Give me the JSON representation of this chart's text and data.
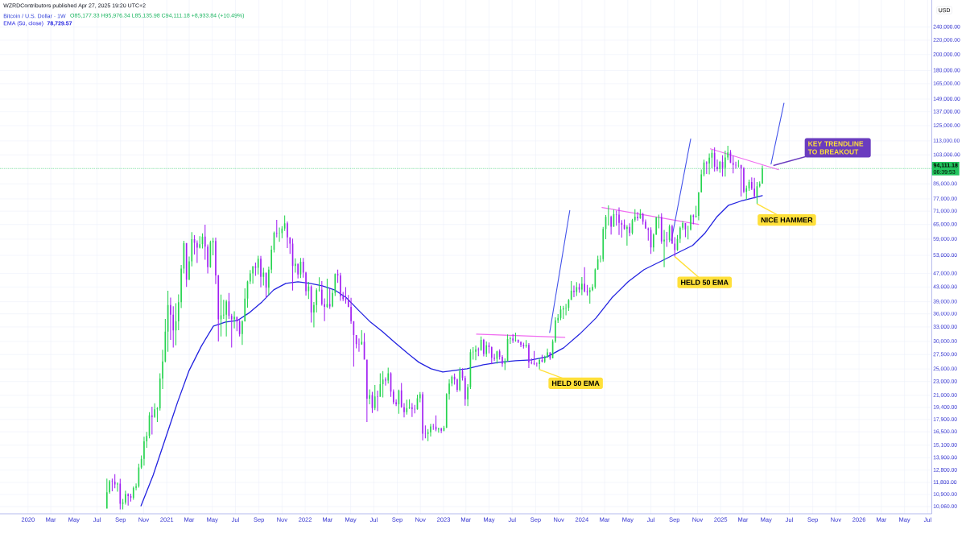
{
  "chart_data": {
    "type": "candlestick",
    "title": "Bitcoin / U.S. Dollar · 1W",
    "ylabel": "USD",
    "annotations": [
      "WZRDContributors published Apr 27, 2025 19:20 UTC+2",
      "O85,177.33 H95,976.34 L85,135.98 C94,111.18 +8,933.84 (+10.49%)",
      "78,729.57",
      "06:39:53",
      {
        "text": "HELD 50 EMA",
        "x": "2023-09-11",
        "y": 24900
      },
      {
        "text": "HELD 50 EMA",
        "x": "2024-09-02",
        "y": 52550
      },
      {
        "text": "NICE HAMMER",
        "x": "2025-04-07",
        "y": 74500
      },
      {
        "text": "KEY TRENDLINE TO BREAKOUT",
        "x": "2025-05-20",
        "y": 96000
      }
    ],
    "legend": "top left",
    "log": "y",
    "grid": true,
    "xlim": [
      "2019-10-19",
      "2026-07-12"
    ],
    "ylim": [
      9590,
      287000
    ],
    "xticks": [
      {
        "value": "2020-01-01",
        "label": "2020"
      },
      {
        "value": "2020-03-01",
        "label": "Mar"
      },
      {
        "value": "2020-05-01",
        "label": "May"
      },
      {
        "value": "2020-07-01",
        "label": "Jul"
      },
      {
        "value": "2020-09-01",
        "label": "Sep"
      },
      {
        "value": "2020-11-01",
        "label": "Nov"
      },
      {
        "value": "2021-01-01",
        "label": "2021"
      },
      {
        "value": "2021-03-01",
        "label": "Mar"
      },
      {
        "value": "2021-05-01",
        "label": "May"
      },
      {
        "value": "2021-07-01",
        "label": "Jul"
      },
      {
        "value": "2021-09-01",
        "label": "Sep"
      },
      {
        "value": "2021-11-01",
        "label": "Nov"
      },
      {
        "value": "2022-01-01",
        "label": "2022"
      },
      {
        "value": "2022-03-01",
        "label": "Mar"
      },
      {
        "value": "2022-05-01",
        "label": "May"
      },
      {
        "value": "2022-07-01",
        "label": "Jul"
      },
      {
        "value": "2022-09-01",
        "label": "Sep"
      },
      {
        "value": "2022-11-01",
        "label": "Nov"
      },
      {
        "value": "2023-01-01",
        "label": "2023"
      },
      {
        "value": "2023-03-01",
        "label": "Mar"
      },
      {
        "value": "2023-05-01",
        "label": "May"
      },
      {
        "value": "2023-07-01",
        "label": "Jul"
      },
      {
        "value": "2023-09-01",
        "label": "Sep"
      },
      {
        "value": "2023-11-01",
        "label": "Nov"
      },
      {
        "value": "2024-01-01",
        "label": "2024"
      },
      {
        "value": "2024-03-01",
        "label": "Mar"
      },
      {
        "value": "2024-05-01",
        "label": "May"
      },
      {
        "value": "2024-07-01",
        "label": "Jul"
      },
      {
        "value": "2024-09-01",
        "label": "Sep"
      },
      {
        "value": "2024-11-01",
        "label": "Nov"
      },
      {
        "value": "2025-01-01",
        "label": "2025"
      },
      {
        "value": "2025-03-01",
        "label": "Mar"
      },
      {
        "value": "2025-05-01",
        "label": "May"
      },
      {
        "value": "2025-07-01",
        "label": "Jul"
      },
      {
        "value": "2025-09-01",
        "label": "Sep"
      },
      {
        "value": "2025-11-01",
        "label": "Nov"
      },
      {
        "value": "2026-01-01",
        "label": "2026"
      },
      {
        "value": "2026-03-01",
        "label": "Mar"
      },
      {
        "value": "2026-05-01",
        "label": "May"
      },
      {
        "value": "2026-07-01",
        "label": "Jul"
      }
    ],
    "yticks": [
      {
        "value": 10060,
        "label": "10,060.00"
      },
      {
        "value": 10900,
        "label": "10,900.00"
      },
      {
        "value": 11800,
        "label": "11,800.00"
      },
      {
        "value": 12800,
        "label": "12,800.00"
      },
      {
        "value": 13900,
        "label": "13,900.00"
      },
      {
        "value": 15100,
        "label": "15,100.00"
      },
      {
        "value": 16500,
        "label": "16,500.00"
      },
      {
        "value": 17900,
        "label": "17,900.00"
      },
      {
        "value": 19400,
        "label": "19,400.00"
      },
      {
        "value": 21000,
        "label": "21,000.00"
      },
      {
        "value": 23000,
        "label": "23,000.00"
      },
      {
        "value": 25000,
        "label": "25,000.00"
      },
      {
        "value": 27500,
        "label": "27,500.00"
      },
      {
        "value": 30000,
        "label": "30,000.00"
      },
      {
        "value": 33000,
        "label": "33,000.00"
      },
      {
        "value": 36000,
        "label": "36,000.00"
      },
      {
        "value": 39000,
        "label": "39,000.00"
      },
      {
        "value": 43000,
        "label": "43,000.00"
      },
      {
        "value": 47000,
        "label": "47,000.00"
      },
      {
        "value": 53000,
        "label": "53,000.00"
      },
      {
        "value": 59000,
        "label": "59,000.00"
      },
      {
        "value": 65000,
        "label": "65,000.00"
      },
      {
        "value": 71000,
        "label": "71,000.00"
      },
      {
        "value": 77000,
        "label": "77,000.00"
      },
      {
        "value": 85000,
        "label": "85,000.00"
      },
      {
        "value": 103000,
        "label": "103,000.00"
      },
      {
        "value": 113000,
        "label": "113,000.00"
      },
      {
        "value": 125000,
        "label": "125,000.00"
      },
      {
        "value": 137000,
        "label": "137,000.00"
      },
      {
        "value": 149000,
        "label": "149,000.00"
      },
      {
        "value": 165000,
        "label": "165,000.00"
      },
      {
        "value": 180000,
        "label": "180,000.00"
      },
      {
        "value": 200000,
        "label": "200,000.00"
      },
      {
        "value": 220000,
        "label": "220,000.00"
      },
      {
        "value": 240000,
        "label": "240,000.00"
      }
    ],
    "ref_lines": [
      {
        "axis": "y",
        "value": 94111.18,
        "label": "94,111.18",
        "color": "#22c55e",
        "line_style": "dotted"
      }
    ],
    "x": [
      "2020-07-27",
      "2020-08-03",
      "2020-08-10",
      "2020-08-17",
      "2020-08-24",
      "2020-08-31",
      "2020-09-07",
      "2020-09-14",
      "2020-09-21",
      "2020-09-28",
      "2020-10-05",
      "2020-10-12",
      "2020-10-19",
      "2020-10-26",
      "2020-11-02",
      "2020-11-09",
      "2020-11-16",
      "2020-11-23",
      "2020-11-30",
      "2020-12-07",
      "2020-12-14",
      "2020-12-21",
      "2020-12-28",
      "2021-01-04",
      "2021-01-11",
      "2021-01-18",
      "2021-01-25",
      "2021-02-01",
      "2021-02-08",
      "2021-02-15",
      "2021-02-22",
      "2021-03-01",
      "2021-03-08",
      "2021-03-15",
      "2021-03-22",
      "2021-03-29",
      "2021-04-05",
      "2021-04-12",
      "2021-04-19",
      "2021-04-26",
      "2021-05-03",
      "2021-05-10",
      "2021-05-17",
      "2021-05-24",
      "2021-05-31",
      "2021-06-07",
      "2021-06-14",
      "2021-06-21",
      "2021-06-28",
      "2021-07-05",
      "2021-07-12",
      "2021-07-19",
      "2021-07-26",
      "2021-08-02",
      "2021-08-09",
      "2021-08-16",
      "2021-08-23",
      "2021-08-30",
      "2021-09-06",
      "2021-09-13",
      "2021-09-20",
      "2021-09-27",
      "2021-10-04",
      "2021-10-11",
      "2021-10-18",
      "2021-10-25",
      "2021-11-01",
      "2021-11-08",
      "2021-11-15",
      "2021-11-22",
      "2021-11-29",
      "2021-12-06",
      "2021-12-13",
      "2021-12-20",
      "2021-12-27",
      "2022-01-03",
      "2022-01-10",
      "2022-01-17",
      "2022-01-24",
      "2022-01-31",
      "2022-02-07",
      "2022-02-14",
      "2022-02-21",
      "2022-02-28",
      "2022-03-07",
      "2022-03-14",
      "2022-03-21",
      "2022-03-28",
      "2022-04-04",
      "2022-04-11",
      "2022-04-18",
      "2022-04-25",
      "2022-05-02",
      "2022-05-09",
      "2022-05-16",
      "2022-05-23",
      "2022-05-30",
      "2022-06-06",
      "2022-06-13",
      "2022-06-20",
      "2022-06-27",
      "2022-07-04",
      "2022-07-11",
      "2022-07-18",
      "2022-07-25",
      "2022-08-01",
      "2022-08-08",
      "2022-08-15",
      "2022-08-22",
      "2022-08-29",
      "2022-09-05",
      "2022-09-12",
      "2022-09-19",
      "2022-09-26",
      "2022-10-03",
      "2022-10-10",
      "2022-10-17",
      "2022-10-24",
      "2022-10-31",
      "2022-11-07",
      "2022-11-14",
      "2022-11-21",
      "2022-11-28",
      "2022-12-05",
      "2022-12-12",
      "2022-12-19",
      "2022-12-26",
      "2023-01-02",
      "2023-01-09",
      "2023-01-16",
      "2023-01-23",
      "2023-01-30",
      "2023-02-06",
      "2023-02-13",
      "2023-02-20",
      "2023-02-27",
      "2023-03-06",
      "2023-03-13",
      "2023-03-20",
      "2023-03-27",
      "2023-04-03",
      "2023-04-10",
      "2023-04-17",
      "2023-04-24",
      "2023-05-01",
      "2023-05-08",
      "2023-05-15",
      "2023-05-22",
      "2023-05-29",
      "2023-06-05",
      "2023-06-12",
      "2023-06-19",
      "2023-06-26",
      "2023-07-03",
      "2023-07-10",
      "2023-07-17",
      "2023-07-24",
      "2023-07-31",
      "2023-08-07",
      "2023-08-14",
      "2023-08-21",
      "2023-08-28",
      "2023-09-04",
      "2023-09-11",
      "2023-09-18",
      "2023-09-25",
      "2023-10-02",
      "2023-10-09",
      "2023-10-16",
      "2023-10-23",
      "2023-10-30",
      "2023-11-06",
      "2023-11-13",
      "2023-11-20",
      "2023-11-27",
      "2023-12-04",
      "2023-12-11",
      "2023-12-18",
      "2023-12-25",
      "2024-01-01",
      "2024-01-08",
      "2024-01-15",
      "2024-01-22",
      "2024-01-29",
      "2024-02-05",
      "2024-02-12",
      "2024-02-19",
      "2024-02-26",
      "2024-03-04",
      "2024-03-11",
      "2024-03-18",
      "2024-03-25",
      "2024-04-01",
      "2024-04-08",
      "2024-04-15",
      "2024-04-22",
      "2024-04-29",
      "2024-05-06",
      "2024-05-13",
      "2024-05-20",
      "2024-05-27",
      "2024-06-03",
      "2024-06-10",
      "2024-06-17",
      "2024-06-24",
      "2024-07-01",
      "2024-07-08",
      "2024-07-15",
      "2024-07-22",
      "2024-07-29",
      "2024-08-05",
      "2024-08-12",
      "2024-08-19",
      "2024-08-26",
      "2024-09-02",
      "2024-09-09",
      "2024-09-16",
      "2024-09-23",
      "2024-09-30",
      "2024-10-07",
      "2024-10-14",
      "2024-10-21",
      "2024-10-28",
      "2024-11-04",
      "2024-11-11",
      "2024-11-18",
      "2024-11-25",
      "2024-12-02",
      "2024-12-09",
      "2024-12-16",
      "2024-12-23",
      "2024-12-30",
      "2025-01-06",
      "2025-01-13",
      "2025-01-20",
      "2025-01-27",
      "2025-02-03",
      "2025-02-10",
      "2025-02-17",
      "2025-02-24",
      "2025-03-03",
      "2025-03-10",
      "2025-03-17",
      "2025-03-24",
      "2025-03-31",
      "2025-04-07",
      "2025-04-14",
      "2025-04-21"
    ],
    "ohlc": [
      [
        9930,
        12100,
        9930,
        11050
      ],
      [
        11050,
        12000,
        10950,
        11900
      ],
      [
        11900,
        12100,
        11130,
        11870
      ],
      [
        11870,
        12470,
        11350,
        11650
      ],
      [
        11650,
        11800,
        11100,
        11710
      ],
      [
        11710,
        12090,
        9880,
        10250
      ],
      [
        10250,
        10580,
        9880,
        10330
      ],
      [
        10330,
        11180,
        10200,
        10930
      ],
      [
        10930,
        10990,
        10130,
        10780
      ],
      [
        10780,
        10960,
        10400,
        10670
      ],
      [
        10670,
        11490,
        10530,
        11390
      ],
      [
        11390,
        11720,
        11200,
        11500
      ],
      [
        11500,
        13350,
        11400,
        13030
      ],
      [
        13030,
        14100,
        12900,
        13800
      ],
      [
        13800,
        15960,
        13200,
        15480
      ],
      [
        15480,
        16480,
        14850,
        16050
      ],
      [
        16050,
        18800,
        15800,
        18400
      ],
      [
        18400,
        19480,
        16200,
        18190
      ],
      [
        18190,
        19920,
        18100,
        19150
      ],
      [
        19150,
        19420,
        17600,
        19270
      ],
      [
        19270,
        24300,
        19000,
        23480
      ],
      [
        23480,
        28400,
        21900,
        26280
      ],
      [
        26280,
        34800,
        26100,
        32000
      ],
      [
        32000,
        41950,
        28000,
        38150
      ],
      [
        38150,
        40100,
        30300,
        35800
      ],
      [
        35800,
        37850,
        28800,
        32250
      ],
      [
        32250,
        38600,
        29250,
        34260
      ],
      [
        34260,
        40950,
        32300,
        38880
      ],
      [
        38880,
        49700,
        37400,
        48580
      ],
      [
        48580,
        58350,
        47000,
        57500
      ],
      [
        57500,
        57500,
        43000,
        45140
      ],
      [
        45140,
        52600,
        45000,
        50970
      ],
      [
        50970,
        61800,
        49300,
        59000
      ],
      [
        59000,
        60600,
        53300,
        57550
      ],
      [
        57550,
        58500,
        50400,
        55800
      ],
      [
        55800,
        60200,
        55500,
        57050
      ],
      [
        57050,
        61300,
        55500,
        60000
      ],
      [
        60000,
        64900,
        51500,
        56150
      ],
      [
        56150,
        57000,
        47000,
        49000
      ],
      [
        49000,
        58450,
        48800,
        57800
      ],
      [
        57800,
        59500,
        53000,
        58250
      ],
      [
        58250,
        59600,
        43800,
        46400
      ],
      [
        46400,
        46600,
        30000,
        34700
      ],
      [
        34700,
        40900,
        31000,
        35650
      ],
      [
        35650,
        39500,
        34800,
        35800
      ],
      [
        35800,
        39500,
        31000,
        39100
      ],
      [
        39100,
        41300,
        34800,
        35500
      ],
      [
        35500,
        36000,
        28800,
        34700
      ],
      [
        34700,
        36600,
        32700,
        35300
      ],
      [
        35300,
        35300,
        32100,
        34250
      ],
      [
        34250,
        34700,
        31000,
        31500
      ],
      [
        31500,
        34500,
        29300,
        34250
      ],
      [
        34250,
        42600,
        34200,
        39850
      ],
      [
        39850,
        44800,
        37500,
        44600
      ],
      [
        44600,
        48100,
        43800,
        47050
      ],
      [
        47050,
        49400,
        43950,
        49300
      ],
      [
        49300,
        50500,
        46300,
        48800
      ],
      [
        48800,
        52900,
        46700,
        51800
      ],
      [
        51800,
        52800,
        42900,
        46000
      ],
      [
        46000,
        48800,
        43400,
        47250
      ],
      [
        47250,
        47300,
        40000,
        42800
      ],
      [
        42800,
        49200,
        40750,
        48200
      ],
      [
        48200,
        56500,
        47100,
        55000
      ],
      [
        55000,
        62000,
        54000,
        61550
      ],
      [
        61550,
        67000,
        59700,
        61300
      ],
      [
        61300,
        63700,
        58000,
        61400
      ],
      [
        61400,
        64300,
        59400,
        63300
      ],
      [
        63300,
        69000,
        62300,
        65500
      ],
      [
        65500,
        66300,
        55600,
        59700
      ],
      [
        59700,
        59800,
        53500,
        57250
      ],
      [
        57250,
        59200,
        42000,
        49400
      ],
      [
        49400,
        51950,
        47300,
        50100
      ],
      [
        50100,
        50200,
        45500,
        46700
      ],
      [
        46700,
        52100,
        45600,
        50800
      ],
      [
        50800,
        52100,
        45700,
        47300
      ],
      [
        47300,
        47500,
        40600,
        41850
      ],
      [
        41850,
        44450,
        39700,
        43100
      ],
      [
        43100,
        43500,
        34000,
        36300
      ],
      [
        36300,
        38950,
        32900,
        38150
      ],
      [
        38150,
        42600,
        36300,
        42100
      ],
      [
        42100,
        45850,
        41700,
        42200
      ],
      [
        42200,
        44700,
        38000,
        38350
      ],
      [
        38350,
        39900,
        34300,
        37700
      ],
      [
        37700,
        45400,
        37450,
        38400
      ],
      [
        38400,
        42600,
        37200,
        37800
      ],
      [
        37800,
        42300,
        37600,
        41300
      ],
      [
        41300,
        47000,
        40500,
        46850
      ],
      [
        46850,
        48200,
        44200,
        46400
      ],
      [
        46400,
        47200,
        39250,
        40400
      ],
      [
        40400,
        41600,
        39200,
        39700
      ],
      [
        39700,
        42950,
        38500,
        39450
      ],
      [
        39450,
        40800,
        37600,
        37700
      ],
      [
        37700,
        40000,
        33700,
        34300
      ],
      [
        34300,
        34300,
        25400,
        31300
      ],
      [
        31300,
        31300,
        28650,
        29450
      ],
      [
        29450,
        30600,
        28000,
        29430
      ],
      [
        29430,
        32300,
        29300,
        29900
      ],
      [
        29900,
        31700,
        26600,
        26600
      ],
      [
        26600,
        26600,
        17600,
        20550
      ],
      [
        20550,
        21850,
        19800,
        21050
      ],
      [
        21050,
        21500,
        18700,
        19300
      ],
      [
        19300,
        22500,
        19050,
        20850
      ],
      [
        20850,
        21650,
        18900,
        20800
      ],
      [
        20800,
        24300,
        20800,
        22600
      ],
      [
        22600,
        24650,
        20700,
        23300
      ],
      [
        23300,
        23650,
        22400,
        23150
      ],
      [
        23150,
        25200,
        22700,
        24300
      ],
      [
        24300,
        24450,
        20800,
        21520
      ],
      [
        21520,
        21850,
        19800,
        20050
      ],
      [
        20050,
        20450,
        19550,
        19800
      ],
      [
        19800,
        21800,
        18600,
        21700
      ],
      [
        21700,
        22800,
        19350,
        19420
      ],
      [
        19420,
        19950,
        18150,
        18800
      ],
      [
        18800,
        20400,
        18500,
        19300
      ],
      [
        19300,
        20450,
        19200,
        19400
      ],
      [
        19400,
        19950,
        18200,
        19200
      ],
      [
        19200,
        19700,
        18650,
        19150
      ],
      [
        19150,
        21100,
        19100,
        20600
      ],
      [
        20600,
        21450,
        20050,
        21150
      ],
      [
        21150,
        21450,
        15600,
        16300
      ],
      [
        16300,
        17200,
        15800,
        16280
      ],
      [
        16280,
        16800,
        15500,
        16450
      ],
      [
        16450,
        17400,
        16000,
        17100
      ],
      [
        17100,
        17400,
        16700,
        17080
      ],
      [
        17080,
        18400,
        16550,
        16750
      ],
      [
        16750,
        16950,
        16400,
        16840
      ],
      [
        16840,
        16950,
        16350,
        16610
      ],
      [
        16610,
        17150,
        16550,
        16950
      ],
      [
        16950,
        21300,
        16900,
        21180
      ],
      [
        21180,
        23350,
        20400,
        22700
      ],
      [
        22700,
        23950,
        22300,
        23750
      ],
      [
        23750,
        24250,
        22550,
        23300
      ],
      [
        23300,
        23450,
        21450,
        21780
      ],
      [
        21780,
        25250,
        21550,
        24650
      ],
      [
        24650,
        25130,
        23150,
        23550
      ],
      [
        23550,
        23880,
        19600,
        20450
      ],
      [
        20450,
        22600,
        19550,
        22160
      ],
      [
        22160,
        28500,
        21900,
        27950
      ],
      [
        27950,
        28900,
        26600,
        28000
      ],
      [
        28000,
        29200,
        26500,
        28450
      ],
      [
        28450,
        28800,
        27200,
        28330
      ],
      [
        28330,
        31000,
        28200,
        30300
      ],
      [
        30300,
        30500,
        27150,
        27600
      ],
      [
        27600,
        30000,
        27100,
        29250
      ],
      [
        29250,
        29800,
        27700,
        28900
      ],
      [
        28900,
        29000,
        25800,
        26900
      ],
      [
        26900,
        27650,
        26350,
        26750
      ],
      [
        26750,
        28200,
        25900,
        28100
      ],
      [
        28100,
        28450,
        26600,
        27100
      ],
      [
        27100,
        27400,
        25350,
        25850
      ],
      [
        25850,
        26800,
        24800,
        26330
      ],
      [
        26330,
        31400,
        26250,
        30470
      ],
      [
        30470,
        31000,
        29500,
        30600
      ],
      [
        30600,
        31500,
        29700,
        30170
      ],
      [
        30170,
        31800,
        29950,
        30250
      ],
      [
        30250,
        30400,
        29650,
        29900
      ],
      [
        29900,
        29990,
        28900,
        29300
      ],
      [
        29300,
        29750,
        28600,
        29050
      ],
      [
        29050,
        30250,
        28750,
        29300
      ],
      [
        29300,
        29650,
        25150,
        26100
      ],
      [
        26100,
        26800,
        25800,
        26000
      ],
      [
        26000,
        28150,
        25650,
        25850
      ],
      [
        25850,
        26100,
        25400,
        25840
      ],
      [
        25840,
        26850,
        24900,
        26530
      ],
      [
        26530,
        27450,
        26100,
        26250
      ],
      [
        26250,
        27300,
        26000,
        27000
      ],
      [
        27000,
        28600,
        26950,
        27900
      ],
      [
        27900,
        27950,
        26550,
        26850
      ],
      [
        26850,
        30400,
        26800,
        30000
      ],
      [
        30000,
        35200,
        29700,
        34500
      ],
      [
        34500,
        35950,
        33900,
        35050
      ],
      [
        35050,
        37950,
        34550,
        37050
      ],
      [
        37050,
        37950,
        34800,
        37350
      ],
      [
        37350,
        38450,
        35650,
        37450
      ],
      [
        37450,
        39700,
        36700,
        39450
      ],
      [
        39450,
        44700,
        39450,
        41950
      ],
      [
        41950,
        43400,
        40200,
        41600
      ],
      [
        41600,
        44400,
        40500,
        42950
      ],
      [
        42950,
        44000,
        41400,
        42250
      ],
      [
        42250,
        45900,
        40750,
        43950
      ],
      [
        43950,
        49000,
        41500,
        41750
      ],
      [
        41750,
        43600,
        40600,
        41550
      ],
      [
        41550,
        42850,
        38500,
        42100
      ],
      [
        42100,
        43850,
        41800,
        43000
      ],
      [
        43000,
        48600,
        42500,
        48300
      ],
      [
        48300,
        52850,
        48150,
        51600
      ],
      [
        51600,
        52950,
        50600,
        51700
      ],
      [
        51700,
        64000,
        50900,
        63150
      ],
      [
        63150,
        69200,
        59000,
        68350
      ],
      [
        68350,
        73800,
        64550,
        68400
      ],
      [
        68400,
        68900,
        60800,
        64050
      ],
      [
        64050,
        71700,
        64000,
        69600
      ],
      [
        69600,
        71300,
        64500,
        69350
      ],
      [
        69350,
        72800,
        60650,
        65650
      ],
      [
        65650,
        66900,
        59600,
        64950
      ],
      [
        64950,
        67200,
        62800,
        63100
      ],
      [
        63100,
        64700,
        56500,
        64000
      ],
      [
        64000,
        65500,
        60200,
        61500
      ],
      [
        61500,
        67500,
        60800,
        66950
      ],
      [
        66950,
        71950,
        66100,
        68500
      ],
      [
        68500,
        70600,
        66700,
        67750
      ],
      [
        67750,
        71950,
        67500,
        69650
      ],
      [
        69650,
        70200,
        65000,
        66200
      ],
      [
        66200,
        67200,
        63200,
        63300
      ],
      [
        63300,
        63750,
        58400,
        62700
      ],
      [
        62700,
        63800,
        53500,
        55850
      ],
      [
        55850,
        61300,
        54300,
        60800
      ],
      [
        60800,
        68400,
        60650,
        68200
      ],
      [
        68200,
        69400,
        63400,
        68250
      ],
      [
        68250,
        70000,
        57200,
        58100
      ],
      [
        58100,
        62700,
        49000,
        58800
      ],
      [
        58800,
        61850,
        56100,
        58750
      ],
      [
        58750,
        65000,
        57800,
        64200
      ],
      [
        64200,
        64950,
        57200,
        57300
      ],
      [
        57300,
        59800,
        52550,
        54850
      ],
      [
        54850,
        60650,
        54600,
        59150
      ],
      [
        59150,
        64100,
        57500,
        63600
      ],
      [
        63600,
        66500,
        62700,
        65600
      ],
      [
        65600,
        65600,
        59800,
        62850
      ],
      [
        62850,
        64500,
        58900,
        62900
      ],
      [
        62900,
        69400,
        62450,
        69000
      ],
      [
        69000,
        69500,
        65100,
        68350
      ],
      [
        68350,
        73600,
        68000,
        68800
      ],
      [
        68800,
        80500,
        66800,
        80400
      ],
      [
        80400,
        93450,
        80300,
        90500
      ],
      [
        90500,
        99800,
        89400,
        97900
      ],
      [
        97900,
        98700,
        90750,
        97300
      ],
      [
        97300,
        104000,
        90500,
        101100
      ],
      [
        101100,
        106500,
        94200,
        104400
      ],
      [
        104400,
        108300,
        92200,
        95200
      ],
      [
        95200,
        99950,
        92500,
        93700
      ],
      [
        93700,
        98950,
        91500,
        98300
      ],
      [
        98300,
        102700,
        89250,
        94500
      ],
      [
        94500,
        106000,
        89250,
        101300
      ],
      [
        101300,
        109350,
        99500,
        104700
      ],
      [
        104700,
        106400,
        97500,
        97700
      ],
      [
        97700,
        102500,
        91200,
        96450
      ],
      [
        96450,
        98500,
        94100,
        96150
      ],
      [
        96150,
        99500,
        94800,
        96250
      ],
      [
        96250,
        96500,
        78200,
        94200
      ],
      [
        94200,
        95000,
        80000,
        80700
      ],
      [
        80700,
        84000,
        76600,
        82600
      ],
      [
        82600,
        87500,
        81200,
        86100
      ],
      [
        86100,
        88800,
        81600,
        82400
      ],
      [
        82400,
        88500,
        77150,
        78400
      ],
      [
        78400,
        86100,
        74500,
        83750
      ],
      [
        83750,
        86450,
        83100,
        85177.33
      ],
      [
        85177.33,
        95976.34,
        85135.98,
        94111.18
      ]
    ],
    "colors": [
      "#26d44f",
      "#26d44f",
      "#a11ff2",
      "#a11ff2",
      "#26d44f",
      "#a11ff2",
      "#26d44f",
      "#26d44f",
      "#a11ff2",
      "#a11ff2",
      "#26d44f",
      "#26d44f",
      "#26d44f",
      "#26d44f",
      "#26d44f",
      "#26d44f",
      "#26d44f",
      "#a11ff2",
      "#26d44f",
      "#26d44f",
      "#26d44f",
      "#26d44f",
      "#26d44f",
      "#26d44f",
      "#a11ff2",
      "#a11ff2",
      "#26d44f",
      "#26d44f",
      "#26d44f",
      "#26d44f",
      "#a11ff2",
      "#26d44f",
      "#26d44f",
      "#a11ff2",
      "#a11ff2",
      "#26d44f",
      "#26d44f",
      "#a11ff2",
      "#a11ff2",
      "#26d44f",
      "#26d44f",
      "#a11ff2",
      "#a11ff2",
      "#26d44f",
      "#26d44f",
      "#26d44f",
      "#a11ff2",
      "#a11ff2",
      "#26d44f",
      "#a11ff2",
      "#a11ff2",
      "#26d44f",
      "#26d44f",
      "#26d44f",
      "#26d44f",
      "#26d44f",
      "#a11ff2",
      "#26d44f",
      "#a11ff2",
      "#26d44f",
      "#a11ff2",
      "#26d44f",
      "#26d44f",
      "#26d44f",
      "#a11ff2",
      "#26d44f",
      "#26d44f",
      "#26d44f",
      "#a11ff2",
      "#a11ff2",
      "#a11ff2",
      "#26d44f",
      "#a11ff2",
      "#26d44f",
      "#a11ff2",
      "#a11ff2",
      "#26d44f",
      "#a11ff2",
      "#26d44f",
      "#26d44f",
      "#26d44f",
      "#a11ff2",
      "#a11ff2",
      "#26d44f",
      "#a11ff2",
      "#26d44f",
      "#26d44f",
      "#a11ff2",
      "#a11ff2",
      "#a11ff2",
      "#a11ff2",
      "#a11ff2",
      "#a11ff2",
      "#a11ff2",
      "#a11ff2",
      "#a11ff2",
      "#26d44f",
      "#a11ff2",
      "#a11ff2",
      "#26d44f",
      "#a11ff2",
      "#26d44f",
      "#a11ff2",
      "#26d44f",
      "#26d44f",
      "#a11ff2",
      "#26d44f",
      "#a11ff2",
      "#a11ff2",
      "#a11ff2",
      "#26d44f",
      "#a11ff2",
      "#a11ff2",
      "#26d44f",
      "#26d44f",
      "#a11ff2",
      "#a11ff2",
      "#26d44f",
      "#26d44f",
      "#a11ff2",
      "#a11ff2",
      "#26d44f",
      "#26d44f",
      "#a11ff2",
      "#a11ff2",
      "#26d44f",
      "#a11ff2",
      "#26d44f",
      "#26d44f",
      "#26d44f",
      "#26d44f",
      "#a11ff2",
      "#a11ff2",
      "#26d44f",
      "#a11ff2",
      "#a11ff2",
      "#26d44f",
      "#26d44f",
      "#26d44f",
      "#26d44f",
      "#a11ff2",
      "#26d44f",
      "#a11ff2",
      "#26d44f",
      "#a11ff2",
      "#a11ff2",
      "#a11ff2",
      "#26d44f",
      "#a11ff2",
      "#a11ff2",
      "#26d44f",
      "#26d44f",
      "#26d44f",
      "#a11ff2",
      "#26d44f",
      "#a11ff2",
      "#a11ff2",
      "#a11ff2",
      "#26d44f",
      "#a11ff2",
      "#a11ff2",
      "#a11ff2",
      "#a11ff2",
      "#26d44f",
      "#a11ff2",
      "#26d44f",
      "#26d44f",
      "#a11ff2",
      "#26d44f",
      "#26d44f",
      "#26d44f",
      "#26d44f",
      "#26d44f",
      "#26d44f",
      "#26d44f",
      "#26d44f",
      "#a11ff2",
      "#26d44f",
      "#a11ff2",
      "#26d44f",
      "#a11ff2",
      "#a11ff2",
      "#26d44f",
      "#26d44f",
      "#26d44f",
      "#26d44f",
      "#26d44f",
      "#26d44f",
      "#26d44f",
      "#26d44f",
      "#a11ff2",
      "#26d44f",
      "#a11ff2",
      "#a11ff2",
      "#a11ff2",
      "#a11ff2",
      "#26d44f",
      "#a11ff2",
      "#26d44f",
      "#26d44f",
      "#a11ff2",
      "#26d44f",
      "#a11ff2",
      "#a11ff2",
      "#a11ff2",
      "#a11ff2",
      "#26d44f",
      "#26d44f",
      "#26d44f",
      "#a11ff2",
      "#26d44f",
      "#a11ff2",
      "#26d44f",
      "#a11ff2",
      "#a11ff2",
      "#26d44f",
      "#26d44f",
      "#26d44f",
      "#a11ff2",
      "#26d44f",
      "#26d44f",
      "#a11ff2",
      "#26d44f",
      "#26d44f",
      "#26d44f",
      "#26d44f",
      "#a11ff2",
      "#26d44f",
      "#26d44f",
      "#a11ff2",
      "#a11ff2",
      "#26d44f",
      "#a11ff2",
      "#26d44f",
      "#26d44f",
      "#a11ff2",
      "#a11ff2",
      "#a11ff2",
      "#26d44f",
      "#a11ff2",
      "#a11ff2",
      "#26d44f",
      "#26d44f",
      "#a11ff2",
      "#a11ff2",
      "#26d44f",
      "#26d44f",
      "#26d44f"
    ],
    "series": [
      {
        "name": "EMA (50, close)",
        "type": "line",
        "color": "#2323e0",
        "x": [
          "2020-10-25",
          "2020-11-26",
          "2020-12-28",
          "2021-01-29",
          "2021-03-01",
          "2021-04-02",
          "2021-05-04",
          "2021-06-05",
          "2021-07-07",
          "2021-08-08",
          "2021-09-09",
          "2021-10-10",
          "2021-11-11",
          "2021-12-13",
          "2022-01-14",
          "2022-02-15",
          "2022-03-19",
          "2022-04-20",
          "2022-05-21",
          "2022-06-22",
          "2022-07-24",
          "2022-08-25",
          "2022-09-26",
          "2022-10-28",
          "2022-11-29",
          "2022-12-30",
          "2023-01-31",
          "2023-03-04",
          "2023-04-16",
          "2023-05-28",
          "2023-07-10",
          "2023-08-21",
          "2023-10-02",
          "2023-11-14",
          "2023-12-26",
          "2024-02-07",
          "2024-03-20",
          "2024-05-02",
          "2024-06-13",
          "2024-07-26",
          "2024-09-06",
          "2024-10-19",
          "2024-11-20",
          "2024-12-21",
          "2025-01-22",
          "2025-02-23",
          "2025-03-27",
          "2025-04-21"
        ],
        "values": [
          10110,
          12380,
          15740,
          20010,
          24770,
          29060,
          33200,
          34100,
          34470,
          36350,
          38950,
          42200,
          44040,
          44520,
          44040,
          43350,
          42200,
          40010,
          36940,
          34100,
          31990,
          29840,
          27850,
          26120,
          25030,
          24500,
          24770,
          25030,
          25710,
          26120,
          26400,
          26540,
          27110,
          28750,
          31480,
          35020,
          40010,
          44520,
          48220,
          50870,
          53650,
          56580,
          61290,
          68180,
          73860,
          75860,
          77490,
          78729.57
        ]
      },
      {
        "type": "line",
        "color": "#f06af0",
        "x": [
          "2023-03-29",
          "2023-11-17"
        ],
        "values": [
          31470,
          30810
        ]
      },
      {
        "type": "line",
        "color": "#f06af0",
        "x": [
          "2024-02-23",
          "2024-11-04"
        ],
        "values": [
          72760,
          65040
        ]
      },
      {
        "type": "line",
        "color": "#f06af0",
        "x": [
          "2024-12-05",
          "2025-06-03"
        ],
        "values": [
          107200,
          93400
        ]
      },
      {
        "type": "line",
        "color": "#4555ea",
        "x": [
          "2023-10-08",
          "2023-11-30"
        ],
        "values": [
          31810,
          71290
        ]
      },
      {
        "type": "line",
        "color": "#4555ea",
        "x": [
          "2024-08-24",
          "2024-10-14"
        ],
        "values": [
          58440,
          114500
        ]
      },
      {
        "type": "line",
        "color": "#4555ea",
        "x": [
          "2025-05-14",
          "2025-06-17"
        ],
        "values": [
          97000,
          145000
        ]
      }
    ]
  }
}
